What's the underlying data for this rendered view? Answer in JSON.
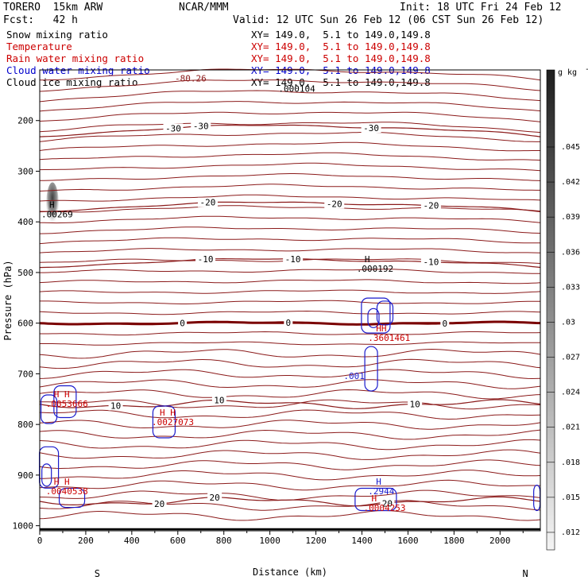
{
  "header": {
    "model": "TORERO  15km ARW",
    "org": "NCAR/MMM",
    "init": "Init: 18 UTC Fri 24 Feb 12",
    "forecast": "Fcst:   42 h",
    "valid": "Valid: 12 UTC Sun 26 Feb 12 (06 CST Sun 26 Feb 12)"
  },
  "fields": [
    {
      "name": "Snow mixing ratio",
      "xy": "XY= 149.0,  5.1 to 149.0,149.8",
      "color": "#000000"
    },
    {
      "name": "Temperature",
      "xy": "XY= 149.0,  5.1 to 149.0,149.8",
      "color": "#cc0000"
    },
    {
      "name": "Rain water mixing ratio",
      "xy": "XY= 149.0,  5.1 to 149.0,149.8",
      "color": "#cc0000"
    },
    {
      "name": "Cloud water mixing ratio",
      "xy": "XY= 149.0,  5.1 to 149.0,149.8",
      "color": "#0000cc"
    },
    {
      "name": "Cloud ice mixing ratio",
      "xy": "XY= 149.0,  5.1 to 149.0,149.8",
      "color": "#000000"
    }
  ],
  "colors": {
    "temperature": "#8b1a1a",
    "zero_isotherm": "#7a0000",
    "rain_label": "#cc0000",
    "cloud_water": "#1a1acc",
    "ice_label": "#000000"
  },
  "chart_data": {
    "type": "contour",
    "xlabel": "Distance (km)",
    "ylabel": "Pressure (hPa)",
    "xlim": [
      0,
      2175
    ],
    "ylim": [
      1010,
      100
    ],
    "x_ticks": [
      0,
      200,
      400,
      600,
      800,
      1000,
      1200,
      1400,
      1600,
      1800,
      2000
    ],
    "y_ticks": [
      200,
      300,
      400,
      500,
      600,
      700,
      800,
      900,
      1000
    ],
    "end_labels": {
      "left": "S",
      "right": "N"
    },
    "colorbar": {
      "unit": "g kg",
      "unit_exp": "-1",
      "ticks": [
        ".045",
        ".042",
        ".039",
        ".036",
        ".033",
        ".03",
        ".027",
        ".024",
        ".021",
        ".018",
        ".015",
        ".012"
      ]
    },
    "temperature_contours": [
      {
        "level": -30,
        "p": 232,
        "bump": 0.55,
        "labels": [
          {
            "x": 580,
            "text": "-30"
          },
          {
            "x": 700,
            "text": "-30"
          },
          {
            "x": 1440,
            "text": "-30"
          }
        ]
      },
      {
        "level": -20,
        "p": 380,
        "bump": 0.45,
        "labels": [
          {
            "x": 730,
            "text": "-20"
          },
          {
            "x": 1280,
            "text": "-20"
          },
          {
            "x": 1700,
            "text": "-20"
          }
        ]
      },
      {
        "level": -10,
        "p": 490,
        "bump": 0.4,
        "labels": [
          {
            "x": 720,
            "text": "-10"
          },
          {
            "x": 1100,
            "text": "-10"
          },
          {
            "x": 1700,
            "text": "-10"
          }
        ]
      },
      {
        "level": 0,
        "p": 600,
        "bump": 0.0,
        "bold": true,
        "labels": [
          {
            "x": 620,
            "text": "0"
          },
          {
            "x": 1080,
            "text": "0"
          },
          {
            "x": 1760,
            "text": "0"
          }
        ]
      },
      {
        "level": 10,
        "p": 760,
        "bump": 0.0,
        "labels": [
          {
            "x": 330,
            "text": "10"
          },
          {
            "x": 780,
            "text": "10"
          },
          {
            "x": 1630,
            "text": "10"
          }
        ]
      },
      {
        "level": 20,
        "p": 952,
        "bump": 0.0,
        "labels": [
          {
            "x": 520,
            "text": "20"
          },
          {
            "x": 760,
            "text": "20"
          },
          {
            "x": 1510,
            "text": "20"
          }
        ]
      }
    ],
    "cloud_water_contours": [
      {
        "label": ".001",
        "x": 1320,
        "p": 710
      }
    ],
    "maxima_labels": [
      {
        "x": 0,
        "p": 388,
        "h": "H",
        "value": ".00269",
        "color": "#000000"
      },
      {
        "x": 1370,
        "p": 495,
        "h": "H",
        "value": ".000192",
        "color": "#000000"
      },
      {
        "x": 1030,
        "p": 140,
        "h": "",
        "value": ".000104",
        "color": "#000000"
      },
      {
        "x": 580,
        "p": 120,
        "h": "",
        "value": "-80.26",
        "color": "#8b1a1a"
      },
      {
        "x": 1420,
        "p": 632,
        "h": "HH",
        "value": ".3601461",
        "color": "#cc0000"
      },
      {
        "x": 20,
        "p": 762,
        "h": "H H",
        "value": ".0053666",
        "color": "#cc0000"
      },
      {
        "x": 480,
        "p": 798,
        "h": "H H",
        "value": ".0027073",
        "color": "#cc0000"
      },
      {
        "x": 20,
        "p": 935,
        "h": "H H",
        "value": ".0040538",
        "color": "#cc0000"
      },
      {
        "x": 1420,
        "p": 935,
        "h": "H",
        "value": ".2944",
        "color": "#1a1acc"
      },
      {
        "x": 1400,
        "p": 968,
        "h": "H",
        "value": ".0004253",
        "color": "#cc0000"
      }
    ]
  }
}
